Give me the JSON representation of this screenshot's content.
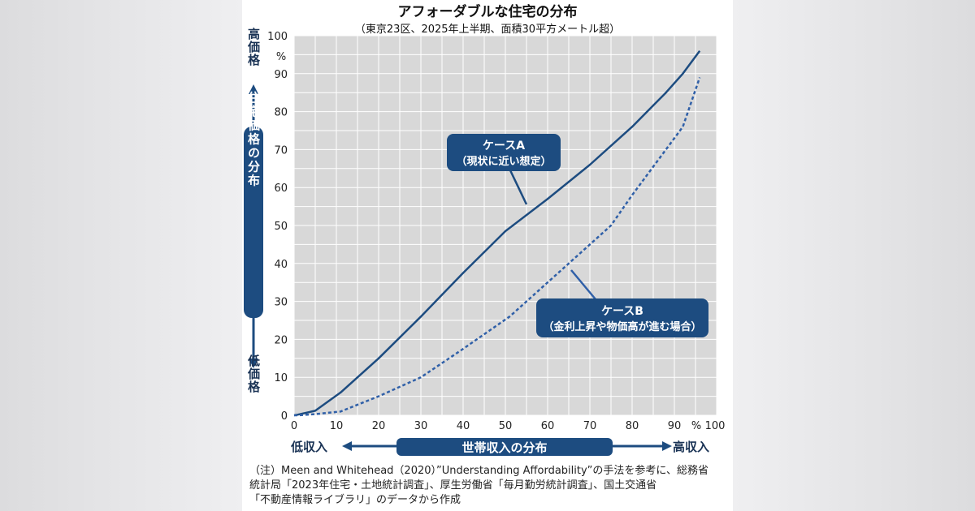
{
  "colors": {
    "accent": "#1d4c80",
    "line_b": "#3060a8",
    "plot_bg": "#d8d8d8",
    "grid": "#ffffff"
  },
  "chart_data": {
    "type": "line",
    "title": "アフォーダブルな住宅の分布",
    "subtitle": "（東京23区、2025年上半期、面積30平方メートル超）",
    "xlabel": "世帯収入の分布",
    "ylabel": "住宅価格の分布",
    "x_low_label": "低収入",
    "x_high_label": "高収入",
    "y_high_label": "高価格",
    "y_low_label": "低価格",
    "y_unit": "%",
    "x_unit": "%",
    "xlim": [
      0,
      100
    ],
    "ylim": [
      0,
      100
    ],
    "x_ticks": [
      "0",
      "10",
      "20",
      "30",
      "40",
      "50",
      "60",
      "70",
      "80",
      "90",
      "100"
    ],
    "y_ticks": [
      "0",
      "10",
      "20",
      "30",
      "40",
      "50",
      "60",
      "70",
      "80",
      "90",
      "100"
    ],
    "grid": true,
    "series": [
      {
        "name": "ケースA",
        "annotation": "（現状に近い想定）",
        "style": "solid",
        "x": [
          0,
          1,
          5,
          11,
          20,
          30,
          40,
          50,
          60,
          70,
          80,
          88,
          92,
          96
        ],
        "y": [
          0,
          0.2,
          1.2,
          6,
          15,
          26,
          37.5,
          48.5,
          57,
          66,
          76,
          85,
          90,
          96
        ]
      },
      {
        "name": "ケースB",
        "annotation": "（金利上昇や物価高が進む場合）",
        "style": "dotted",
        "x": [
          0,
          1,
          5,
          11,
          20,
          30,
          40,
          51,
          60,
          70,
          75,
          80,
          88,
          92,
          96
        ],
        "y": [
          0,
          0,
          0.3,
          1,
          5,
          10,
          17.5,
          26,
          35,
          45,
          50,
          58,
          70,
          76,
          89
        ]
      }
    ]
  },
  "note": {
    "line1": "（注）Meen and Whitehead（2020）”Understanding Affordability”の手法を参考に、総務省",
    "line2": "統計局「2023年住宅・土地統計調査」、厚生労働省「毎月勤労統計調査」、国土交通省",
    "line3": "「不動産情報ライブラリ」のデータから作成"
  }
}
